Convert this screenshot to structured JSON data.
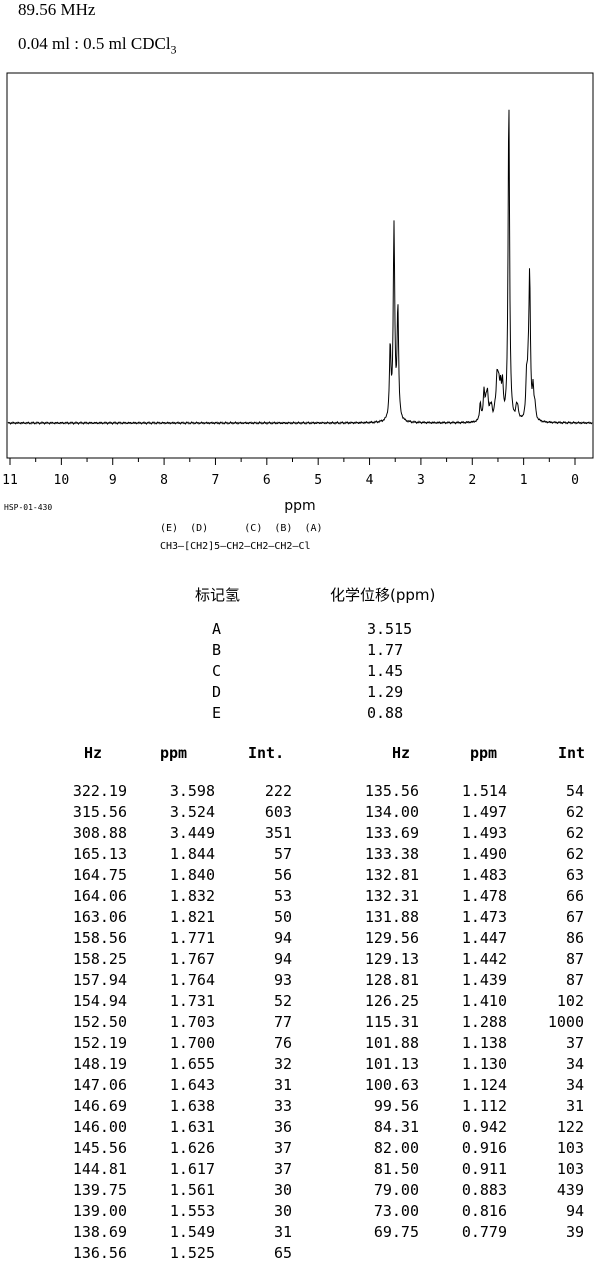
{
  "header": {
    "frequency": "89.56 MHz",
    "solvent": "0.04 ml : 0.5 ml CDCl",
    "solvent_sub": "3"
  },
  "code": "HSP-01-430",
  "structure": {
    "labels": "(E)  (D)      (C)  (B)  (A)",
    "formula": "CH3—[CH2]5—CH2—CH2—CH2—Cl"
  },
  "assignment": {
    "header_label": "标记氢",
    "header_shift": "化学位移(ppm)",
    "rows": [
      {
        "label": "A",
        "shift": "3.515"
      },
      {
        "label": "B",
        "shift": "1.77"
      },
      {
        "label": "C",
        "shift": "1.45"
      },
      {
        "label": "D",
        "shift": "1.29"
      },
      {
        "label": "E",
        "shift": "0.88"
      }
    ]
  },
  "peaks_table": {
    "headers_left": [
      "Hz",
      "ppm",
      "Int."
    ],
    "headers_right": [
      "Hz",
      "ppm",
      "Int"
    ],
    "left": [
      [
        "322.19",
        "3.598",
        "222"
      ],
      [
        "315.56",
        "3.524",
        "603"
      ],
      [
        "308.88",
        "3.449",
        "351"
      ],
      [
        "165.13",
        "1.844",
        "57"
      ],
      [
        "164.75",
        "1.840",
        "56"
      ],
      [
        "164.06",
        "1.832",
        "53"
      ],
      [
        "163.06",
        "1.821",
        "50"
      ],
      [
        "158.56",
        "1.771",
        "94"
      ],
      [
        "158.25",
        "1.767",
        "94"
      ],
      [
        "157.94",
        "1.764",
        "93"
      ],
      [
        "154.94",
        "1.731",
        "52"
      ],
      [
        "152.50",
        "1.703",
        "77"
      ],
      [
        "152.19",
        "1.700",
        "76"
      ],
      [
        "148.19",
        "1.655",
        "32"
      ],
      [
        "147.06",
        "1.643",
        "31"
      ],
      [
        "146.69",
        "1.638",
        "33"
      ],
      [
        "146.00",
        "1.631",
        "36"
      ],
      [
        "145.56",
        "1.626",
        "37"
      ],
      [
        "144.81",
        "1.617",
        "37"
      ],
      [
        "139.75",
        "1.561",
        "30"
      ],
      [
        "139.00",
        "1.553",
        "30"
      ],
      [
        "138.69",
        "1.549",
        "31"
      ],
      [
        "136.56",
        "1.525",
        "65"
      ]
    ],
    "right": [
      [
        "135.56",
        "1.514",
        "54"
      ],
      [
        "134.00",
        "1.497",
        "62"
      ],
      [
        "133.69",
        "1.493",
        "62"
      ],
      [
        "133.38",
        "1.490",
        "62"
      ],
      [
        "132.81",
        "1.483",
        "63"
      ],
      [
        "132.31",
        "1.478",
        "66"
      ],
      [
        "131.88",
        "1.473",
        "67"
      ],
      [
        "129.56",
        "1.447",
        "86"
      ],
      [
        "129.13",
        "1.442",
        "87"
      ],
      [
        "128.81",
        "1.439",
        "87"
      ],
      [
        "126.25",
        "1.410",
        "102"
      ],
      [
        "115.31",
        "1.288",
        "1000"
      ],
      [
        "101.88",
        "1.138",
        "37"
      ],
      [
        "101.13",
        "1.130",
        "34"
      ],
      [
        "100.63",
        "1.124",
        "34"
      ],
      [
        "99.56",
        "1.112",
        "31"
      ],
      [
        "84.31",
        "0.942",
        "122"
      ],
      [
        "82.00",
        "0.916",
        "103"
      ],
      [
        "81.50",
        "0.911",
        "103"
      ],
      [
        "79.00",
        "0.883",
        "439"
      ],
      [
        "73.00",
        "0.816",
        "94"
      ],
      [
        "69.75",
        "0.779",
        "39"
      ]
    ]
  },
  "chart_data": {
    "type": "line",
    "xlabel": "ppm",
    "xlim": [
      11,
      0
    ],
    "xticks": [
      "11",
      "10",
      "9",
      "8",
      "7",
      "6",
      "5",
      "4",
      "3",
      "2",
      "1",
      "0"
    ],
    "grid": false,
    "peaks": [
      {
        "ppm": 3.598,
        "intensity": 222
      },
      {
        "ppm": 3.524,
        "intensity": 603
      },
      {
        "ppm": 3.449,
        "intensity": 351
      },
      {
        "ppm": 1.844,
        "intensity": 57
      },
      {
        "ppm": 1.771,
        "intensity": 94
      },
      {
        "ppm": 1.731,
        "intensity": 52
      },
      {
        "ppm": 1.703,
        "intensity": 77
      },
      {
        "ppm": 1.655,
        "intensity": 32
      },
      {
        "ppm": 1.626,
        "intensity": 37
      },
      {
        "ppm": 1.561,
        "intensity": 30
      },
      {
        "ppm": 1.525,
        "intensity": 65
      },
      {
        "ppm": 1.514,
        "intensity": 54
      },
      {
        "ppm": 1.497,
        "intensity": 62
      },
      {
        "ppm": 1.478,
        "intensity": 66
      },
      {
        "ppm": 1.447,
        "intensity": 86
      },
      {
        "ppm": 1.41,
        "intensity": 102
      },
      {
        "ppm": 1.288,
        "intensity": 1000
      },
      {
        "ppm": 1.138,
        "intensity": 37
      },
      {
        "ppm": 1.112,
        "intensity": 31
      },
      {
        "ppm": 0.942,
        "intensity": 122
      },
      {
        "ppm": 0.911,
        "intensity": 103
      },
      {
        "ppm": 0.883,
        "intensity": 439
      },
      {
        "ppm": 0.816,
        "intensity": 94
      },
      {
        "ppm": 0.779,
        "intensity": 39
      }
    ]
  }
}
